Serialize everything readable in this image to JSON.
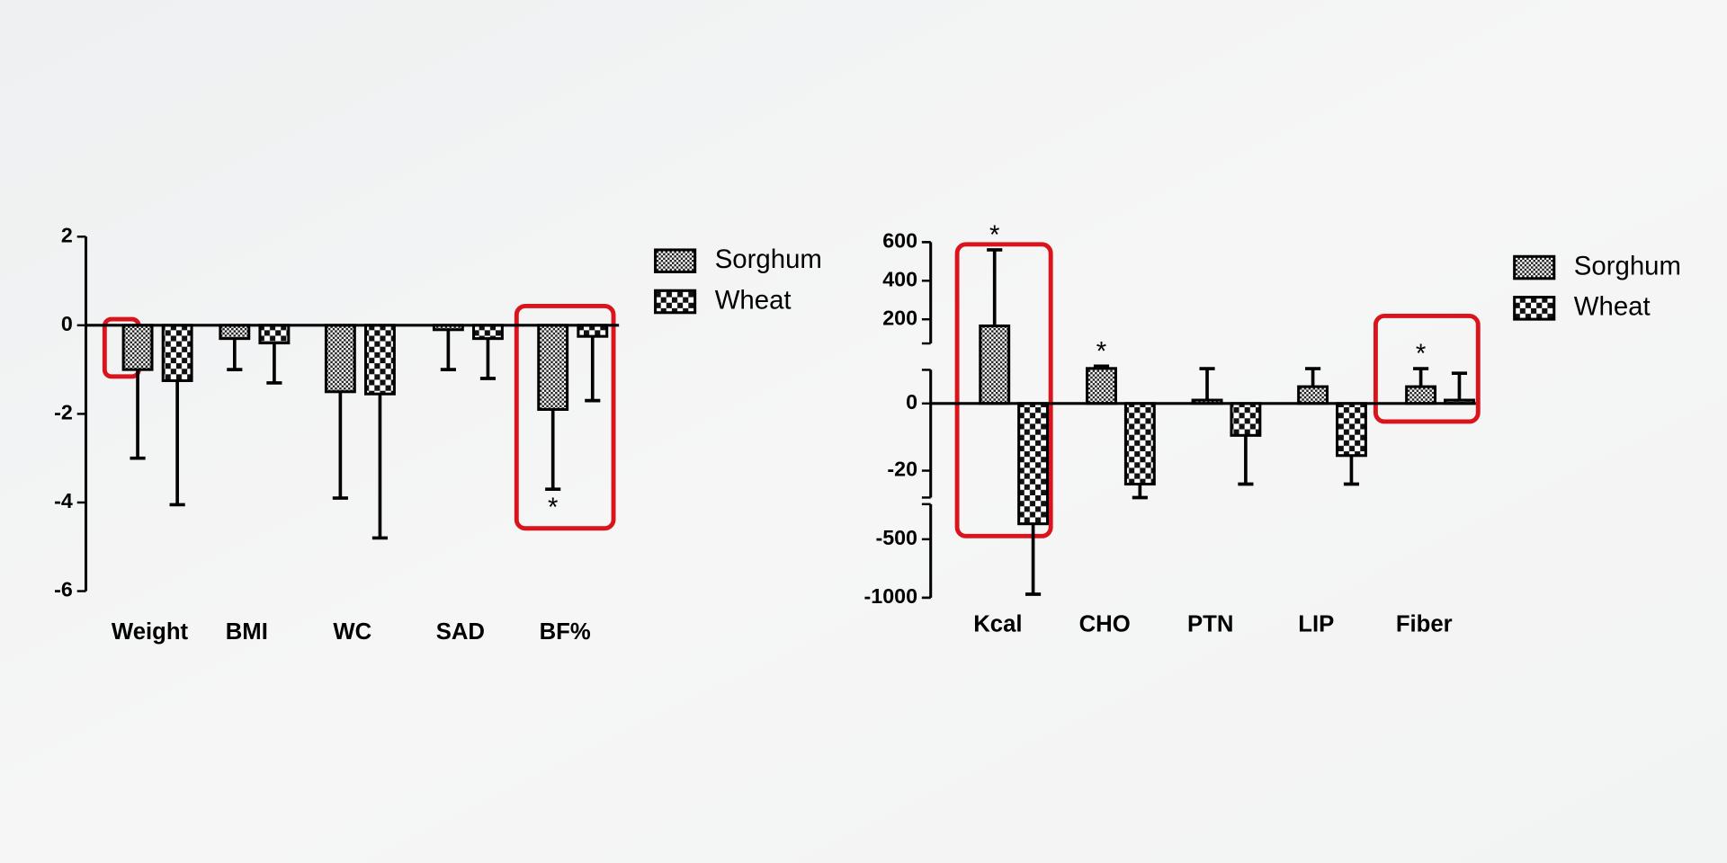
{
  "chart_data": [
    {
      "type": "bar",
      "categories": [
        "Weight",
        "BMI",
        "WC",
        "SAD",
        "BF%"
      ],
      "series": [
        {
          "name": "Sorghum",
          "color": "#000000",
          "values": [
            -1.0,
            -0.3,
            -1.5,
            -0.1,
            -1.9
          ],
          "errors": [
            2.0,
            0.7,
            2.4,
            0.9,
            1.8
          ],
          "annotations": [
            null,
            null,
            null,
            null,
            "*"
          ]
        },
        {
          "name": "Wheat",
          "color": "#000000",
          "values": [
            -1.25,
            -0.4,
            -1.55,
            -0.3,
            -0.25
          ],
          "errors": [
            2.8,
            0.9,
            3.25,
            0.9,
            1.45
          ],
          "annotations": [
            null,
            null,
            null,
            null,
            null
          ]
        }
      ],
      "ylim": [
        -6,
        2
      ],
      "yticks": [
        -6,
        -4,
        -2,
        0,
        2
      ],
      "legend": "right"
    },
    {
      "type": "bar",
      "categories": [
        "Kcal",
        "CHO",
        "PTN",
        "LIP",
        "Fiber"
      ],
      "series": [
        {
          "name": "Sorghum",
          "color": "#000000",
          "values": [
            166,
            13.5,
            1,
            5,
            5
          ],
          "errors": [
            394,
            5.5,
            12,
            8,
            8
          ],
          "annotations": [
            "*",
            "*",
            null,
            null,
            "*"
          ]
        },
        {
          "name": "Wheat",
          "color": "#000000",
          "values": [
            -368,
            -24,
            -9.5,
            -15.5,
            1
          ],
          "errors": [
            602,
            5,
            14.5,
            8.5,
            8
          ],
          "annotations": [
            null,
            null,
            null,
            null,
            null
          ]
        }
      ],
      "ylim": [
        -1000,
        600
      ],
      "y_segments": [
        {
          "ylim": [
            75,
            600
          ],
          "yticks": [
            200,
            400,
            600
          ]
        },
        {
          "ylim": [
            -28,
            10
          ],
          "yticks": [
            -20,
            0
          ]
        },
        {
          "ylim": [
            -1000,
            -200
          ],
          "yticks": [
            -1000,
            -500
          ]
        }
      ],
      "legend": "right"
    }
  ]
}
